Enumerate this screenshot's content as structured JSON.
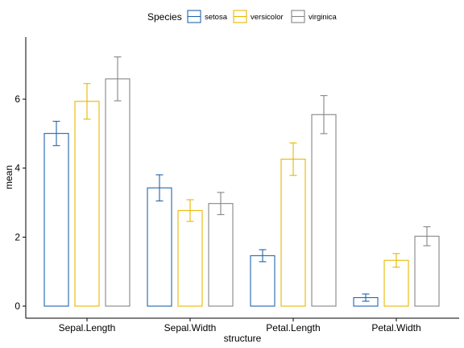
{
  "chart_data": {
    "type": "bar",
    "title": "",
    "xlabel": "structure",
    "ylabel": "mean",
    "ylim": [
      -0.35,
      7.8
    ],
    "yticks": [
      0,
      2,
      4,
      6
    ],
    "grid": false,
    "legend_position": "top",
    "legend_title": "Species",
    "categories": [
      "Sepal.Length",
      "Sepal.Width",
      "Petal.Length",
      "Petal.Width"
    ],
    "series": [
      {
        "name": "setosa",
        "color": "#2166ac",
        "values": [
          5.006,
          3.428,
          1.462,
          0.246
        ],
        "sd": [
          0.352,
          0.379,
          0.174,
          0.105
        ]
      },
      {
        "name": "versicolor",
        "color": "#e7b800",
        "values": [
          5.936,
          2.77,
          4.26,
          1.326
        ],
        "sd": [
          0.516,
          0.314,
          0.47,
          0.198
        ]
      },
      {
        "name": "virginica",
        "color": "#868686",
        "values": [
          6.588,
          2.974,
          5.552,
          2.026
        ],
        "sd": [
          0.636,
          0.322,
          0.552,
          0.275
        ]
      }
    ]
  }
}
